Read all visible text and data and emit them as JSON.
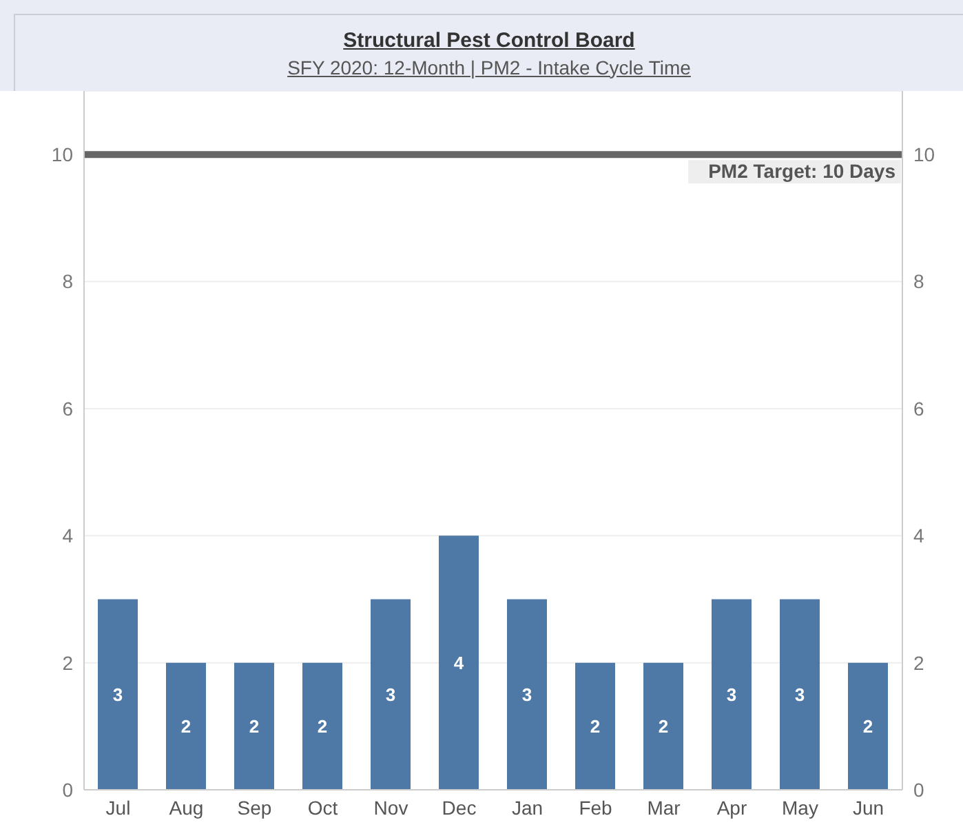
{
  "chart_data": {
    "type": "bar",
    "title": "Structural Pest Control Board",
    "subtitle": "SFY 2020: 12-Month | PM2 - Intake Cycle Time",
    "categories": [
      "Jul",
      "Aug",
      "Sep",
      "Oct",
      "Nov",
      "Dec",
      "Jan",
      "Feb",
      "Mar",
      "Apr",
      "May",
      "Jun"
    ],
    "values": [
      3,
      2,
      2,
      2,
      3,
      4,
      3,
      2,
      2,
      3,
      3,
      2
    ],
    "color": "#4e79a7",
    "ylim": [
      0,
      11
    ],
    "yticks": [
      0,
      2,
      4,
      6,
      8,
      10
    ],
    "y2lim": [
      0,
      11
    ],
    "y2ticks": [
      0,
      2,
      4,
      6,
      8,
      10
    ],
    "grid": "y",
    "data_labels": true,
    "ref_lines": [
      {
        "axis": "y",
        "value": 10,
        "label": "PM2 Target: 10 Days",
        "color": "#666666"
      }
    ]
  }
}
